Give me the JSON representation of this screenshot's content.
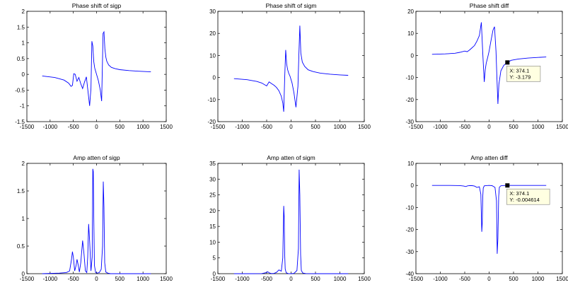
{
  "chart_data": [
    {
      "type": "line",
      "title": "Phase shift of sigp",
      "xlim": [
        -1500,
        1500
      ],
      "ylim": [
        -1.5,
        2
      ],
      "xticks": [
        -1500,
        -1000,
        -500,
        0,
        500,
        1000,
        1500
      ],
      "yticks": [
        -1.5,
        -1,
        -0.5,
        0,
        0.5,
        1,
        1.5,
        2
      ],
      "series": [
        {
          "color": "#0000ff",
          "x": [
            -1170,
            -900,
            -700,
            -600,
            -550,
            -520,
            -490,
            -460,
            -420,
            -380,
            -340,
            -300,
            -260,
            -220,
            -180,
            -150,
            -120,
            -100,
            -80,
            -60,
            -40,
            -20,
            0,
            40,
            80,
            110,
            140,
            160,
            180,
            200,
            220,
            260,
            320,
            400,
            500,
            700,
            900,
            1170
          ],
          "y": [
            -0.05,
            -0.1,
            -0.18,
            -0.28,
            -0.38,
            -0.35,
            0.02,
            0.0,
            -0.22,
            -0.1,
            -0.3,
            -0.45,
            -0.25,
            -0.08,
            -0.6,
            -1.0,
            -0.45,
            1.05,
            0.9,
            0.4,
            0.2,
            0.1,
            0.0,
            -0.2,
            -0.5,
            -0.85,
            1.3,
            1.35,
            0.8,
            0.55,
            0.42,
            0.3,
            0.22,
            0.18,
            0.15,
            0.12,
            0.1,
            0.08
          ]
        }
      ]
    },
    {
      "type": "line",
      "title": "Phase shift of sigm",
      "xlim": [
        -1500,
        1500
      ],
      "ylim": [
        -20,
        30
      ],
      "xticks": [
        -1500,
        -1000,
        -500,
        0,
        500,
        1000,
        1500
      ],
      "yticks": [
        -20,
        -10,
        0,
        10,
        20,
        30
      ],
      "series": [
        {
          "color": "#0000ff",
          "x": [
            -1170,
            -900,
            -700,
            -600,
            -500,
            -450,
            -400,
            -350,
            -300,
            -250,
            -200,
            -170,
            -150,
            -130,
            -110,
            -90,
            -70,
            -50,
            -20,
            20,
            60,
            100,
            140,
            160,
            180,
            200,
            230,
            280,
            350,
            450,
            600,
            800,
            1000,
            1170
          ],
          "y": [
            -0.5,
            -1.0,
            -1.8,
            -2.5,
            -3.8,
            -2.0,
            -2.8,
            -3.5,
            -4.5,
            -6.0,
            -8.5,
            -11.5,
            -15.5,
            0.0,
            12.5,
            6.0,
            3.5,
            2.0,
            0.5,
            -2.5,
            -7.0,
            -13.5,
            -4.0,
            10.0,
            23.5,
            11.0,
            7.0,
            5.0,
            3.5,
            2.7,
            2.0,
            1.5,
            1.2,
            1.0
          ]
        }
      ]
    },
    {
      "type": "line",
      "title": "Phase shift diff",
      "xlim": [
        -1500,
        1500
      ],
      "ylim": [
        -30,
        20
      ],
      "xticks": [
        -1500,
        -1000,
        -500,
        0,
        500,
        1000,
        1500
      ],
      "yticks": [
        -30,
        -20,
        -10,
        0,
        10,
        20
      ],
      "series": [
        {
          "color": "#0000ff",
          "x": [
            -1170,
            -900,
            -700,
            -600,
            -500,
            -450,
            -400,
            -350,
            -300,
            -250,
            -200,
            -160,
            -130,
            -100,
            -80,
            -60,
            -30,
            0,
            40,
            80,
            110,
            140,
            160,
            180,
            200,
            240,
            300,
            374.1,
            450,
            600,
            800,
            1000,
            1170
          ],
          "y": [
            0.5,
            0.7,
            1.0,
            1.4,
            2.0,
            1.7,
            2.5,
            3.5,
            4.5,
            6.5,
            9.0,
            15.0,
            1.0,
            -12.0,
            -6.5,
            -3.5,
            -1.0,
            2.0,
            7.0,
            11.5,
            13.0,
            2.0,
            -10.0,
            -22.0,
            -13.0,
            -7.0,
            -4.5,
            -3.179,
            -2.2,
            -1.6,
            -1.2,
            -0.9,
            -0.7
          ]
        }
      ],
      "datatip": {
        "x": 374.1,
        "y": -3.179,
        "label_x": "X: 374.1",
        "label_y": "Y: -3.179"
      }
    },
    {
      "type": "line",
      "title": "Amp atten of sigp",
      "xlim": [
        -1500,
        1500
      ],
      "ylim": [
        0,
        2
      ],
      "xticks": [
        -1500,
        -1000,
        -500,
        0,
        500,
        1000,
        1500
      ],
      "yticks": [
        0,
        0.5,
        1,
        1.5,
        2
      ],
      "series": [
        {
          "color": "#0000ff",
          "x": [
            -1170,
            -800,
            -650,
            -580,
            -540,
            -520,
            -500,
            -470,
            -440,
            -420,
            -400,
            -370,
            -340,
            -320,
            -300,
            -270,
            -240,
            -210,
            -190,
            -170,
            -150,
            -120,
            -95,
            -80,
            -70,
            -60,
            -45,
            -20,
            10,
            60,
            100,
            130,
            145,
            160,
            175,
            200,
            240,
            300,
            500,
            800,
            1170
          ],
          "y": [
            0.0,
            0.01,
            0.02,
            0.05,
            0.25,
            0.4,
            0.3,
            0.05,
            0.15,
            0.26,
            0.18,
            0.03,
            0.2,
            0.4,
            0.6,
            0.35,
            0.05,
            0.02,
            0.3,
            0.9,
            0.6,
            0.05,
            0.3,
            1.9,
            1.85,
            1.0,
            0.15,
            0.02,
            0.01,
            0.02,
            0.08,
            0.5,
            1.67,
            1.2,
            0.2,
            0.03,
            0.01,
            0.0,
            0.0,
            0.0,
            0.0
          ]
        }
      ]
    },
    {
      "type": "line",
      "title": "Amp atten of sigm",
      "xlim": [
        -1500,
        1500
      ],
      "ylim": [
        0,
        35
      ],
      "xticks": [
        -1500,
        -1000,
        -500,
        0,
        500,
        1000,
        1500
      ],
      "yticks": [
        0,
        5,
        10,
        15,
        20,
        25,
        30,
        35
      ],
      "series": [
        {
          "color": "#0000ff",
          "x": [
            -1170,
            -800,
            -600,
            -520,
            -480,
            -440,
            -400,
            -350,
            -300,
            -250,
            -200,
            -170,
            -150,
            -140,
            -130,
            -120,
            -100,
            -60,
            0,
            60,
            120,
            150,
            165,
            180,
            195,
            210,
            240,
            300,
            500,
            800,
            1170
          ],
          "y": [
            0.0,
            0.0,
            0.05,
            0.3,
            0.6,
            0.2,
            0.05,
            0.1,
            0.4,
            1.2,
            0.8,
            5.0,
            21.5,
            18.0,
            6.0,
            1.5,
            0.3,
            0.05,
            0.0,
            0.1,
            1.0,
            8.0,
            33.0,
            25.0,
            6.0,
            1.0,
            0.2,
            0.05,
            0.0,
            0.0,
            0.0
          ]
        }
      ]
    },
    {
      "type": "line",
      "title": "Amp atten diff",
      "xlim": [
        -1500,
        1500
      ],
      "ylim": [
        -40,
        10
      ],
      "xticks": [
        -1500,
        -1000,
        -500,
        0,
        500,
        1000,
        1500
      ],
      "yticks": [
        -40,
        -30,
        -20,
        -10,
        0,
        10
      ],
      "series": [
        {
          "color": "#0000ff",
          "x": [
            -1170,
            -800,
            -600,
            -520,
            -480,
            -440,
            -400,
            -350,
            -300,
            -250,
            -200,
            -170,
            -150,
            -140,
            -130,
            -120,
            -100,
            -60,
            0,
            60,
            120,
            150,
            165,
            180,
            195,
            210,
            240,
            300,
            374.1,
            500,
            800,
            1170
          ],
          "y": [
            0.0,
            0.0,
            -0.05,
            -0.3,
            -0.5,
            -0.2,
            -0.05,
            -0.1,
            -0.3,
            -0.9,
            -0.6,
            -4.0,
            -21.0,
            -17.0,
            -5.0,
            -1.2,
            -0.2,
            -0.05,
            0.0,
            -0.1,
            -0.9,
            -7.0,
            -31.0,
            -24.0,
            -5.0,
            -0.8,
            -0.15,
            -0.03,
            -0.004614,
            0.0,
            0.0,
            0.0
          ]
        }
      ],
      "datatip": {
        "x": 374.1,
        "y": -0.004614,
        "label_x": "X: 374.1",
        "label_y": "Y: -0.004614"
      }
    }
  ]
}
